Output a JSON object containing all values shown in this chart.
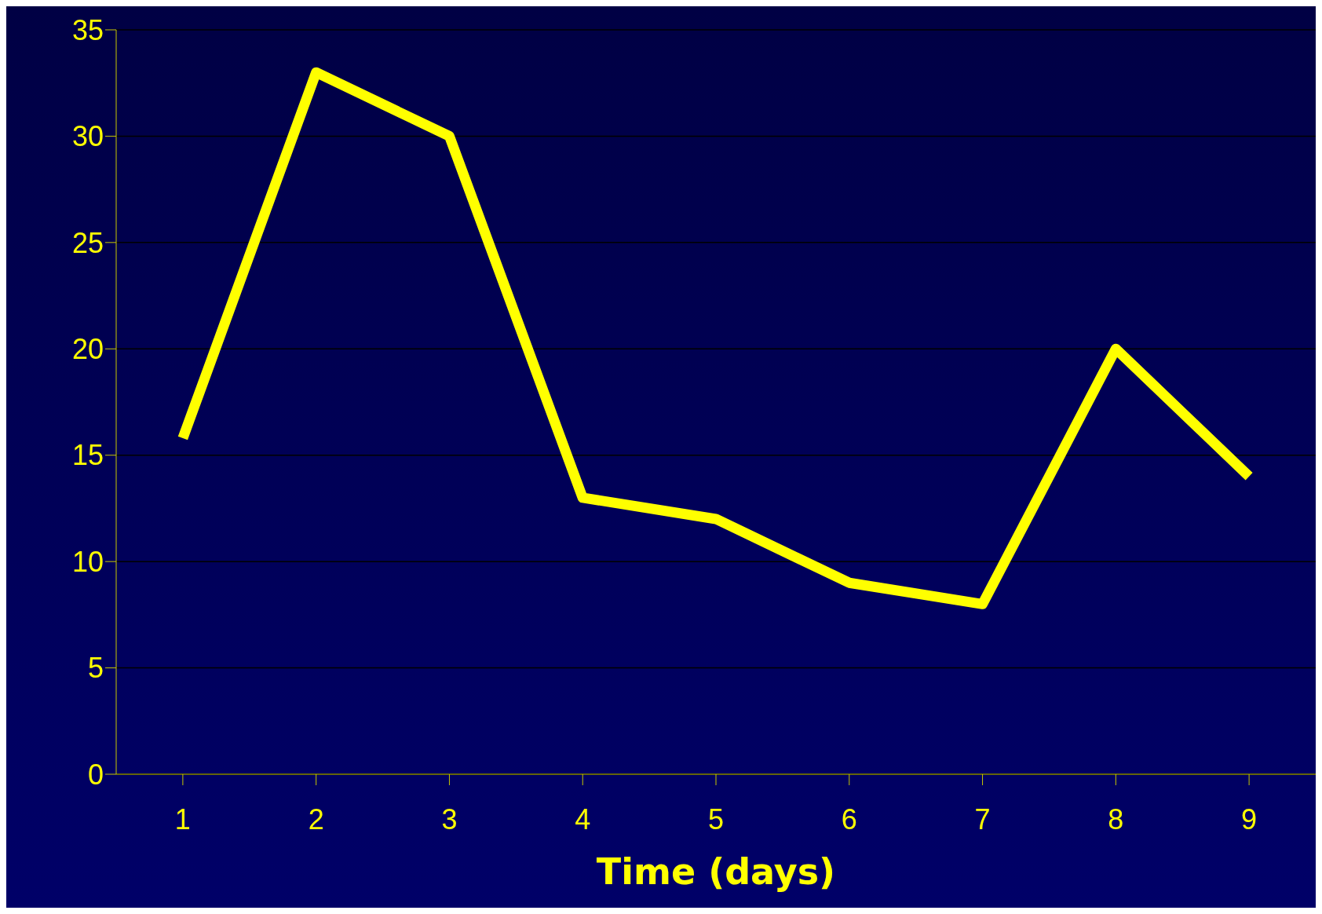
{
  "chart_data": {
    "type": "line",
    "xlabel": "Time (days)",
    "categories": [
      "1",
      "2",
      "3",
      "4",
      "5",
      "6",
      "7",
      "8",
      "9"
    ],
    "series": [
      {
        "color": "#ffff00",
        "values": [
          15.8,
          33,
          30,
          13,
          12,
          9,
          8,
          20,
          14
        ]
      }
    ],
    "ylim": [
      0,
      35
    ],
    "yticks": [
      0,
      5,
      10,
      15,
      20,
      25,
      30,
      35
    ],
    "grid": "y",
    "marker": "none",
    "line_style": "solid"
  }
}
